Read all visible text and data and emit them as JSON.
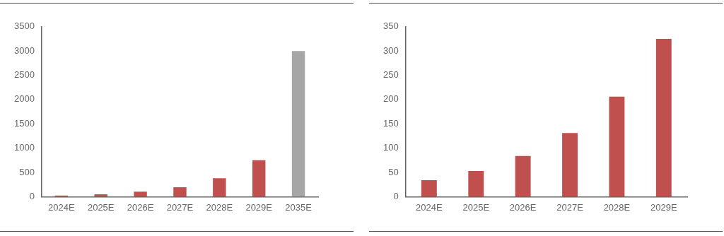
{
  "chart_data": [
    {
      "type": "bar",
      "categories": [
        "2024E",
        "2025E",
        "2026E",
        "2027E",
        "2028E",
        "2029E",
        "2035E"
      ],
      "values": [
        25,
        50,
        105,
        195,
        380,
        750,
        3000
      ],
      "colors": [
        "#c0504d",
        "#c0504d",
        "#c0504d",
        "#c0504d",
        "#c0504d",
        "#c0504d",
        "#a6a6a6"
      ],
      "ylim": [
        0,
        3500
      ],
      "yticks": [
        0,
        500,
        1000,
        1500,
        2000,
        2500,
        3000,
        3500
      ],
      "grid": false,
      "legend": false
    },
    {
      "type": "bar",
      "categories": [
        "2024E",
        "2025E",
        "2026E",
        "2027E",
        "2028E",
        "2029E"
      ],
      "values": [
        34,
        53,
        84,
        131,
        206,
        325
      ],
      "colors": [
        "#c0504d",
        "#c0504d",
        "#c0504d",
        "#c0504d",
        "#c0504d",
        "#c0504d"
      ],
      "ylim": [
        0,
        350
      ],
      "yticks": [
        0,
        50,
        100,
        150,
        200,
        250,
        300,
        350
      ],
      "grid": false,
      "legend": false
    }
  ]
}
